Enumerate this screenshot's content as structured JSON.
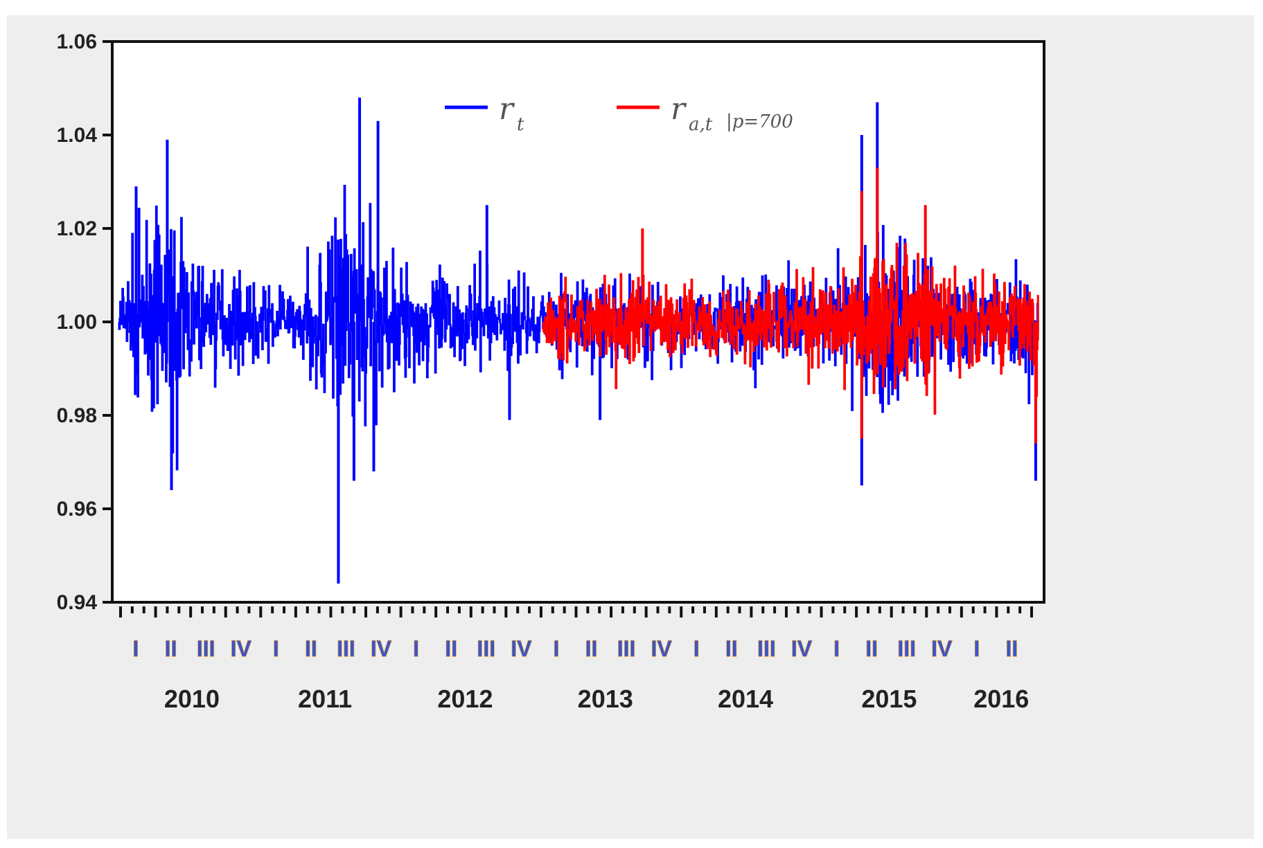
{
  "chart_data": {
    "type": "line",
    "title": "",
    "xlabel": "",
    "ylabel": "",
    "ylim": [
      0.94,
      1.06
    ],
    "yticks": [
      "0.94",
      "0.96",
      "0.98",
      "1.00",
      "1.02",
      "1.04",
      "1.06"
    ],
    "quarter_labels": [
      "I",
      "II",
      "III",
      "IV",
      "I",
      "II",
      "III",
      "IV",
      "I",
      "II",
      "III",
      "IV",
      "I",
      "II",
      "III",
      "IV",
      "I",
      "II",
      "III",
      "IV",
      "I",
      "II",
      "III",
      "IV",
      "I",
      "II"
    ],
    "years": [
      "2010",
      "2011",
      "2012",
      "2013",
      "2014",
      "2015",
      "2016"
    ],
    "year_quarter_index": [
      1.6,
      5.4,
      9.4,
      13.4,
      17.4,
      21.5,
      24.7
    ],
    "x_range": [
      2010.0,
      2016.5
    ],
    "legend": {
      "placement": "top-center",
      "series": [
        {
          "symbol": "r",
          "sub": "t",
          "suffix": "",
          "color": "#0000ff"
        },
        {
          "symbol": "r",
          "sub": "a,t",
          "suffix": "|p=700",
          "color": "#ff0000"
        }
      ]
    },
    "series": [
      {
        "color": "#0000ff",
        "x_start": 2010.0,
        "x_end": 2016.5,
        "y_range": [
          0.944,
          1.048
        ],
        "envelope": [
          [
            2010.0,
            0.012
          ],
          [
            2010.2,
            0.025
          ],
          [
            2010.35,
            0.03
          ],
          [
            2010.55,
            0.022
          ],
          [
            2010.75,
            0.014
          ],
          [
            2011.0,
            0.01
          ],
          [
            2011.3,
            0.01
          ],
          [
            2011.5,
            0.04
          ],
          [
            2011.7,
            0.035
          ],
          [
            2011.9,
            0.02
          ],
          [
            2012.2,
            0.016
          ],
          [
            2012.6,
            0.013
          ],
          [
            2013.0,
            0.012
          ],
          [
            2013.5,
            0.014
          ],
          [
            2014.0,
            0.01
          ],
          [
            2014.6,
            0.014
          ],
          [
            2015.0,
            0.012
          ],
          [
            2015.3,
            0.025
          ],
          [
            2015.5,
            0.03
          ],
          [
            2015.8,
            0.016
          ],
          [
            2016.2,
            0.014
          ],
          [
            2016.5,
            0.02
          ]
        ],
        "spikes": [
          [
            2010.34,
            1.039
          ],
          [
            2010.37,
            0.964
          ],
          [
            2010.12,
            1.029
          ],
          [
            2011.55,
            0.944
          ],
          [
            2011.7,
            1.048
          ],
          [
            2011.83,
            1.043
          ],
          [
            2011.66,
            0.966
          ],
          [
            2012.6,
            1.025
          ],
          [
            2015.25,
            1.04
          ],
          [
            2015.36,
            1.047
          ],
          [
            2015.25,
            0.965
          ],
          [
            2016.48,
            0.966
          ],
          [
            2012.76,
            0.979
          ],
          [
            2013.4,
            0.979
          ],
          [
            2011.8,
            0.968
          ]
        ]
      },
      {
        "color": "#ff0000",
        "x_start": 2013.0,
        "x_end": 2016.5,
        "y_range": [
          0.974,
          1.033
        ],
        "envelope": [
          [
            2013.0,
            0.01
          ],
          [
            2013.4,
            0.014
          ],
          [
            2014.0,
            0.01
          ],
          [
            2014.6,
            0.013
          ],
          [
            2015.0,
            0.012
          ],
          [
            2015.3,
            0.022
          ],
          [
            2015.5,
            0.026
          ],
          [
            2015.8,
            0.016
          ],
          [
            2016.2,
            0.012
          ],
          [
            2016.5,
            0.018
          ]
        ],
        "spikes": [
          [
            2015.36,
            1.033
          ],
          [
            2015.25,
            1.028
          ],
          [
            2015.25,
            0.975
          ],
          [
            2016.48,
            0.974
          ],
          [
            2013.7,
            1.02
          ],
          [
            2014.9,
            0.99
          ],
          [
            2015.7,
            1.025
          ]
        ]
      }
    ]
  }
}
